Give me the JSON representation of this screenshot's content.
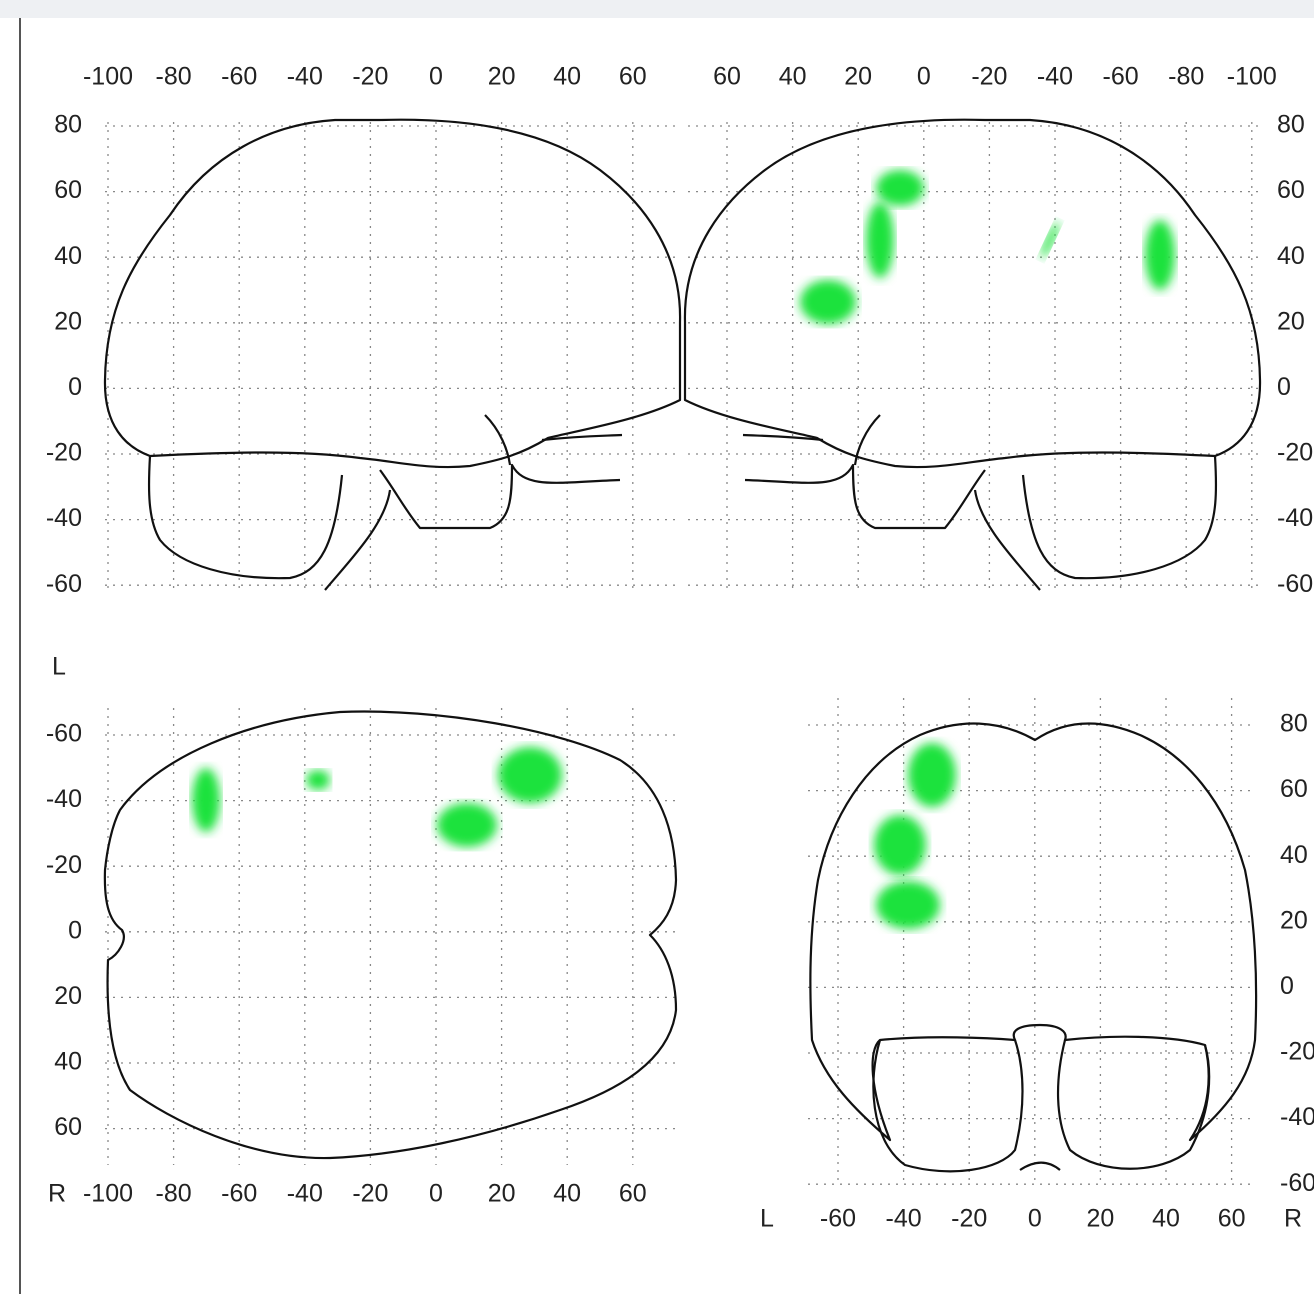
{
  "panels": [
    {
      "xticks": [
        -100,
        -80,
        -60,
        -40,
        -20,
        0,
        20,
        40,
        60
      ],
      "yticks": [
        80,
        60,
        40,
        20,
        0,
        -20,
        -40,
        -60
      ]
    },
    {
      "xticks": [
        60,
        40,
        20,
        0,
        -20,
        -40,
        -60,
        -80,
        -100
      ],
      "yticks": [
        80,
        60,
        40,
        20,
        0,
        -20,
        -40,
        -60
      ]
    },
    {
      "top_label": "L",
      "left_label": "R",
      "xticks": [
        -100,
        -80,
        -60,
        -40,
        -20,
        0,
        20,
        40,
        60
      ],
      "yticks": [
        -60,
        -40,
        -20,
        0,
        20,
        40,
        60
      ]
    },
    {
      "left_label": "L",
      "right_label": "R",
      "xticks": [
        -60,
        -40,
        -20,
        0,
        20,
        40,
        60
      ],
      "yticks": [
        80,
        60,
        40,
        20,
        0,
        -20,
        -40,
        -60
      ]
    }
  ]
}
